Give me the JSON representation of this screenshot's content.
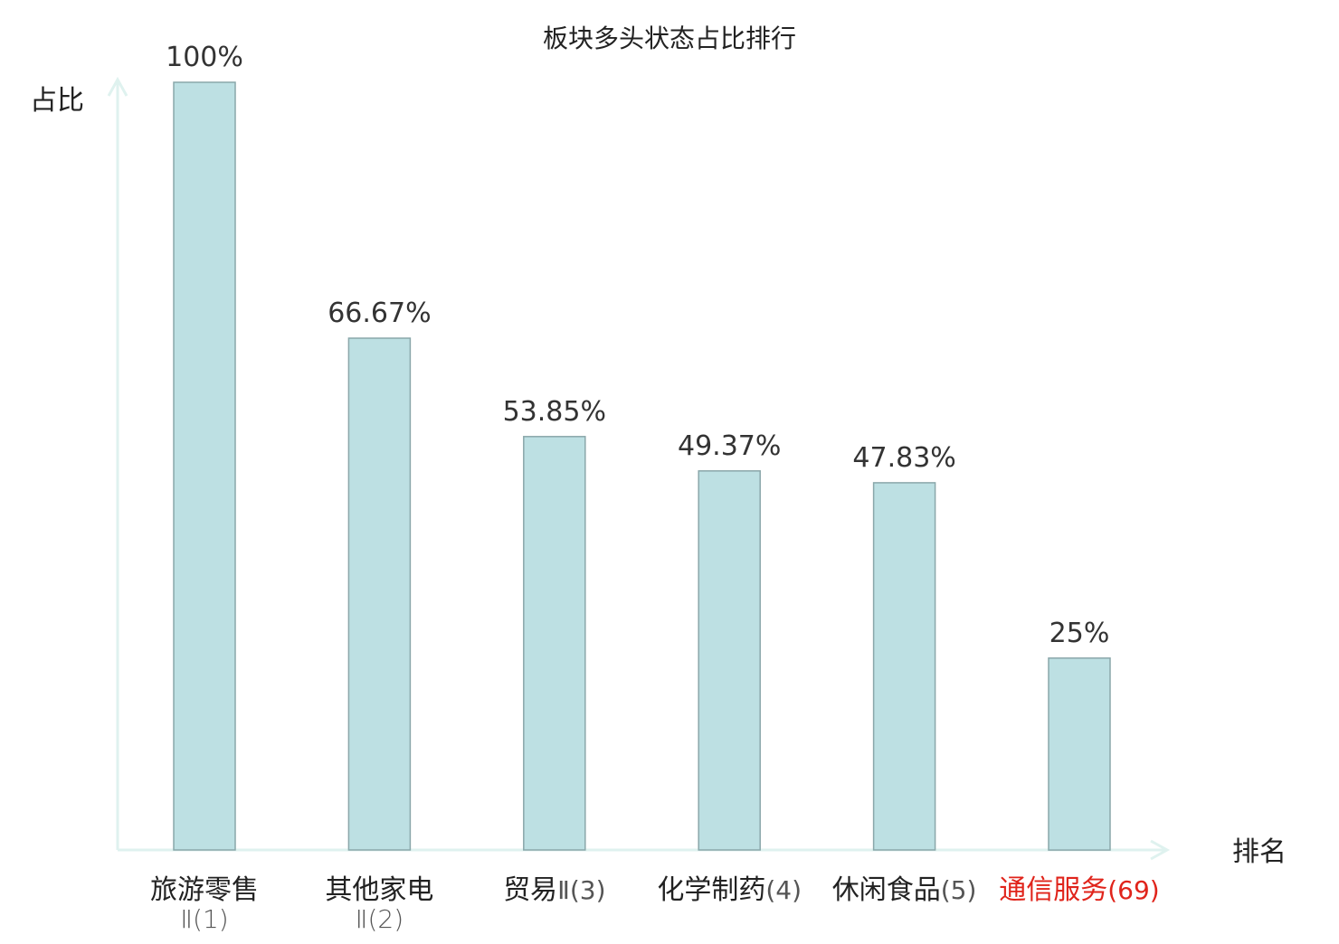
{
  "chart_data": {
    "type": "bar",
    "title": "板块多头状态占比排行",
    "ylabel": "占比",
    "xlabel": "排名",
    "ylim": [
      0,
      100
    ],
    "grid": false,
    "categories": [
      {
        "name": "旅游零售",
        "suffix": "Ⅱ(1)",
        "highlight": false
      },
      {
        "name": "其他家电",
        "suffix": "Ⅱ(2)",
        "highlight": false
      },
      {
        "name": "贸易",
        "suffix": "Ⅱ(3)",
        "highlight": false
      },
      {
        "name": "化学制药",
        "suffix": "(4)",
        "highlight": false
      },
      {
        "name": "休闲食品",
        "suffix": "(5)",
        "highlight": false
      },
      {
        "name": "通信服务",
        "suffix": "(69)",
        "highlight": true
      }
    ],
    "values": [
      100,
      66.67,
      53.85,
      49.37,
      47.83,
      25
    ],
    "value_labels": [
      "100%",
      "66.67%",
      "53.85%",
      "49.37%",
      "47.83%",
      "25%"
    ],
    "colors": {
      "bar_fill": "#bde0e3",
      "bar_stroke": "#8aa7aa",
      "axis": "#dff2ef",
      "text": "#222222",
      "label_value": "#333333",
      "suffix": "#555555",
      "highlight": "#e0241b"
    }
  }
}
